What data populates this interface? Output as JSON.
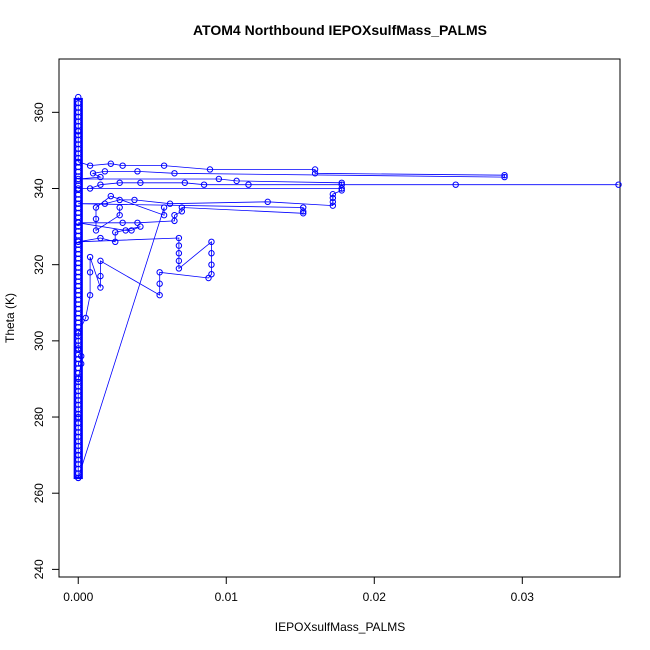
{
  "chart_data": {
    "type": "scatter",
    "title": "ATOM4 Northbound IEPOXsulfMass_PALMS",
    "xlabel": "IEPOXsulfMass_PALMS",
    "ylabel": "Theta (K)",
    "xlim": [
      -0.0013,
      0.0366
    ],
    "ylim": [
      238,
      374
    ],
    "x_ticks": [
      0,
      0.01,
      0.02,
      0.03
    ],
    "x_tick_labels": [
      "0.000",
      "0.01",
      "0.02",
      "0.03"
    ],
    "y_ticks": [
      240,
      260,
      280,
      300,
      320,
      340,
      360
    ],
    "y_tick_labels": [
      "240",
      "260",
      "280",
      "300",
      "320",
      "340",
      "360"
    ],
    "grid": false,
    "marker": "open-circle",
    "connected_by_lines": true,
    "color": "#0000ff",
    "zero_column": {
      "x": 0.0,
      "y_min": 264,
      "y_max": 363.5
    },
    "series": [
      {
        "points": [
          [
            0.0,
            364
          ],
          [
            0.0,
            355
          ],
          [
            0.0,
            347
          ],
          [
            0.0008,
            346
          ],
          [
            0.0022,
            346.5
          ],
          [
            0.003,
            346
          ],
          [
            0.0058,
            346
          ],
          [
            0.0089,
            345
          ],
          [
            0.016,
            345
          ],
          [
            0.016,
            344
          ],
          [
            0.0288,
            343.5
          ],
          [
            0.0288,
            343
          ],
          [
            0.0065,
            344
          ],
          [
            0.004,
            344.5
          ],
          [
            0.0018,
            344.5
          ],
          [
            0.001,
            344
          ],
          [
            0.0015,
            343
          ],
          [
            0.0,
            342.5
          ],
          [
            0.0095,
            342.5
          ],
          [
            0.0107,
            342
          ],
          [
            0.0178,
            341.5
          ],
          [
            0.0178,
            341
          ],
          [
            0.0365,
            341
          ],
          [
            0.0255,
            341
          ],
          [
            0.0115,
            341
          ],
          [
            0.0085,
            341
          ],
          [
            0.0072,
            341.5
          ],
          [
            0.0042,
            341.5
          ],
          [
            0.0028,
            341.5
          ],
          [
            0.0015,
            341
          ],
          [
            0.0008,
            340
          ],
          [
            0.0,
            340
          ],
          [
            0.0178,
            340
          ],
          [
            0.0178,
            339.5
          ],
          [
            0.0172,
            338.5
          ],
          [
            0.0172,
            337.5
          ],
          [
            0.0172,
            336.5
          ],
          [
            0.0172,
            335.5
          ],
          [
            0.0128,
            336.5
          ],
          [
            0.0062,
            336
          ],
          [
            0.0038,
            337
          ],
          [
            0.0028,
            337
          ],
          [
            0.0018,
            336
          ],
          [
            0.0,
            336
          ],
          [
            0.0152,
            335
          ],
          [
            0.0152,
            334
          ],
          [
            0.0152,
            333.5
          ],
          [
            0.007,
            335
          ],
          [
            0.007,
            334
          ],
          [
            0.0065,
            333
          ],
          [
            0.0065,
            331.5
          ],
          [
            0.004,
            331
          ],
          [
            0.003,
            331
          ],
          [
            0.0,
            331
          ],
          [
            0.0032,
            329
          ],
          [
            0.0036,
            329
          ],
          [
            0.0042,
            330
          ],
          [
            0.0025,
            328.5
          ],
          [
            0.0025,
            326
          ],
          [
            0.0015,
            327
          ],
          [
            0.0,
            326
          ],
          [
            0.0068,
            327
          ],
          [
            0.0068,
            325
          ],
          [
            0.0068,
            323
          ],
          [
            0.0068,
            321
          ],
          [
            0.0068,
            319
          ],
          [
            0.009,
            326
          ],
          [
            0.009,
            323
          ],
          [
            0.009,
            320
          ],
          [
            0.009,
            317.5
          ],
          [
            0.0088,
            316.5
          ],
          [
            0.0055,
            318
          ],
          [
            0.0055,
            315
          ],
          [
            0.0055,
            312
          ],
          [
            0.0015,
            321
          ],
          [
            0.0015,
            317
          ],
          [
            0.0015,
            314
          ],
          [
            0.0008,
            322
          ],
          [
            0.0008,
            318
          ],
          [
            0.0008,
            312
          ],
          [
            0.0005,
            306
          ],
          [
            0.0,
            302
          ],
          [
            0.0,
            298
          ],
          [
            0.0002,
            296
          ],
          [
            0.0002,
            294
          ],
          [
            0.0,
            290
          ],
          [
            0.0,
            280
          ],
          [
            0.0,
            270
          ],
          [
            0.0,
            264
          ],
          [
            0.0058,
            335
          ],
          [
            0.0058,
            333
          ],
          [
            0.0022,
            338
          ],
          [
            0.0012,
            335
          ],
          [
            0.0012,
            332
          ],
          [
            0.0012,
            329
          ],
          [
            0.0028,
            333
          ],
          [
            0.0028,
            335
          ]
        ]
      }
    ]
  }
}
